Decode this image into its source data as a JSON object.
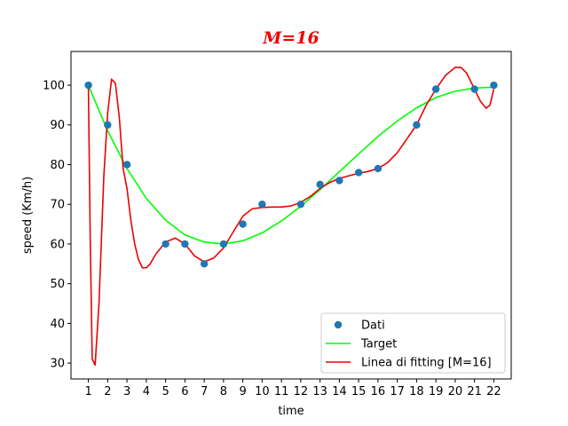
{
  "chart_data": {
    "type": "line",
    "title": "M=16",
    "title_color": "#ee0000",
    "xlabel": "time",
    "ylabel": "speed (Km/h)",
    "xlim": [
      0.1,
      22.9
    ],
    "ylim": [
      26,
      108.5
    ],
    "x_ticks": [
      1,
      2,
      3,
      4,
      5,
      6,
      7,
      8,
      9,
      10,
      11,
      12,
      13,
      14,
      15,
      16,
      17,
      18,
      19,
      20,
      21,
      22
    ],
    "y_ticks": [
      30,
      40,
      50,
      60,
      70,
      80,
      90,
      100
    ],
    "grid": false,
    "legend_position": "lower-right",
    "series": [
      {
        "name": "Dati",
        "kind": "scatter",
        "color": "#1f77b4",
        "points": [
          [
            1,
            100
          ],
          [
            2,
            90
          ],
          [
            3,
            80
          ],
          [
            5,
            60
          ],
          [
            6,
            60
          ],
          [
            7,
            55
          ],
          [
            8,
            60
          ],
          [
            9,
            65
          ],
          [
            10,
            70
          ],
          [
            12,
            70
          ],
          [
            13,
            75
          ],
          [
            14,
            76
          ],
          [
            15,
            78
          ],
          [
            16,
            79
          ],
          [
            18,
            90
          ],
          [
            19,
            99
          ],
          [
            21,
            99
          ],
          [
            22,
            100
          ]
        ]
      },
      {
        "name": "Target",
        "kind": "line",
        "color": "#00ff00",
        "points": [
          [
            1,
            100
          ],
          [
            2,
            88.5
          ],
          [
            3,
            79
          ],
          [
            4,
            71.5
          ],
          [
            5,
            66
          ],
          [
            6,
            62.3
          ],
          [
            7,
            60.5
          ],
          [
            8,
            60
          ],
          [
            9,
            60.8
          ],
          [
            10,
            62.8
          ],
          [
            11,
            65.8
          ],
          [
            12,
            69.5
          ],
          [
            13,
            73.7
          ],
          [
            14,
            78.2
          ],
          [
            15,
            82.7
          ],
          [
            16,
            87.1
          ],
          [
            17,
            91
          ],
          [
            18,
            94.3
          ],
          [
            19,
            96.9
          ],
          [
            20,
            98.5
          ],
          [
            21,
            99.3
          ],
          [
            22,
            99.5
          ]
        ]
      },
      {
        "name": "Linea di fitting [M=16]",
        "kind": "line",
        "color": "#ee0000",
        "points": [
          [
            1,
            100
          ],
          [
            1.1,
            60
          ],
          [
            1.2,
            31
          ],
          [
            1.35,
            29.5
          ],
          [
            1.55,
            45
          ],
          [
            1.8,
            77
          ],
          [
            2,
            93
          ],
          [
            2.2,
            101.5
          ],
          [
            2.4,
            100.5
          ],
          [
            2.6,
            92
          ],
          [
            2.8,
            79
          ],
          [
            3,
            74
          ],
          [
            3.2,
            66
          ],
          [
            3.4,
            60
          ],
          [
            3.6,
            56
          ],
          [
            3.8,
            54
          ],
          [
            4,
            54
          ],
          [
            4.2,
            55
          ],
          [
            4.5,
            57.5
          ],
          [
            5,
            60.5
          ],
          [
            5.5,
            61.5
          ],
          [
            6,
            60
          ],
          [
            6.5,
            57
          ],
          [
            7,
            55.5
          ],
          [
            7.5,
            56.5
          ],
          [
            8,
            59
          ],
          [
            8.5,
            63
          ],
          [
            9,
            67
          ],
          [
            9.5,
            68.9
          ],
          [
            10,
            69.2
          ],
          [
            10.5,
            69.3
          ],
          [
            11,
            69.3
          ],
          [
            11.5,
            69.6
          ],
          [
            12,
            70.5
          ],
          [
            12.5,
            72
          ],
          [
            13,
            74
          ],
          [
            13.5,
            75.5
          ],
          [
            14,
            76.5
          ],
          [
            14.5,
            77.2
          ],
          [
            15,
            77.8
          ],
          [
            15.5,
            78.3
          ],
          [
            16,
            79
          ],
          [
            16.5,
            80.5
          ],
          [
            17,
            83
          ],
          [
            17.5,
            86.5
          ],
          [
            18,
            90
          ],
          [
            18.5,
            95
          ],
          [
            19,
            99
          ],
          [
            19.5,
            102.5
          ],
          [
            20,
            104.5
          ],
          [
            20.3,
            104.5
          ],
          [
            20.6,
            103
          ],
          [
            21,
            99
          ],
          [
            21.3,
            96
          ],
          [
            21.6,
            94.2
          ],
          [
            21.8,
            95
          ],
          [
            22,
            99
          ]
        ]
      }
    ]
  }
}
